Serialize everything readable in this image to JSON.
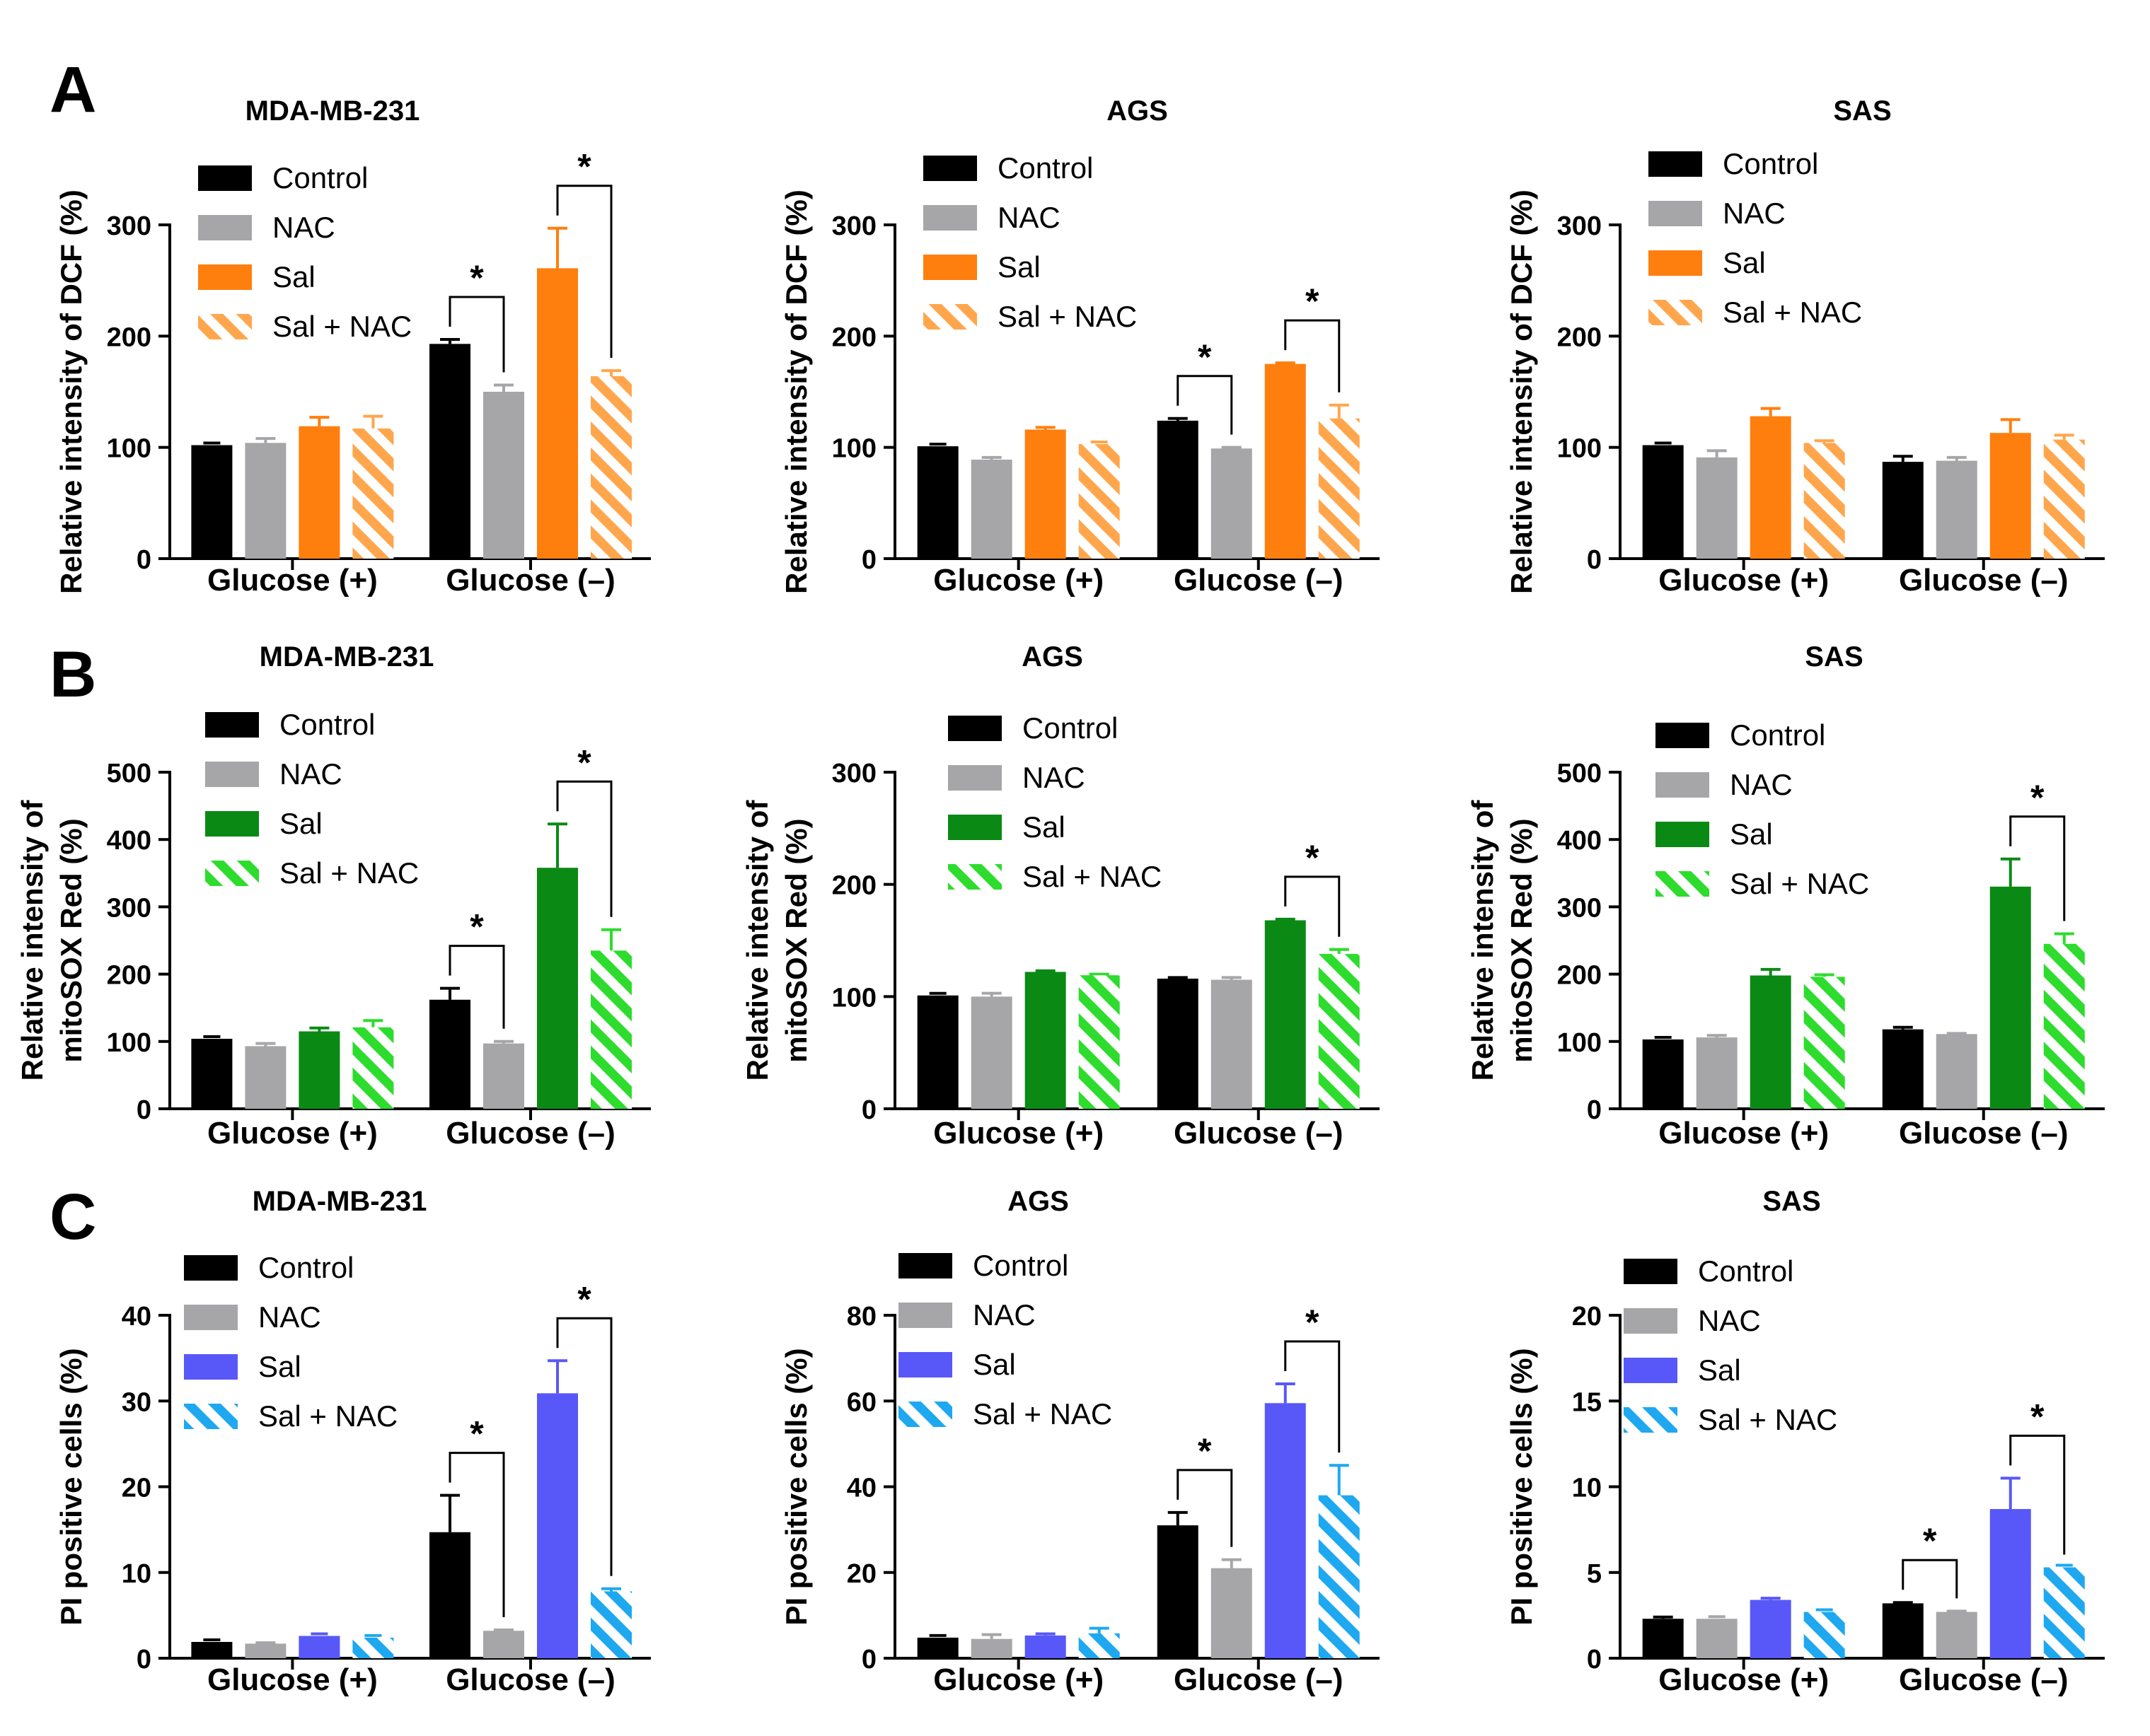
{
  "figure": {
    "colors": {
      "axis": "#000000",
      "control": "#000000",
      "nac": "#a6a6a8",
      "orange": "#ff7f0e",
      "orange_light": "#ffa64d",
      "green": "#0a8a14",
      "green_light": "#2ddc2d",
      "blue": "#5858f8",
      "blue_light": "#1ea8f0"
    },
    "rows": [
      {
        "letter": "A",
        "sal_color": "orange",
        "hatch_color": "orange_light"
      },
      {
        "letter": "B",
        "sal_color": "green",
        "hatch_color": "green_light"
      },
      {
        "letter": "C",
        "sal_color": "blue",
        "hatch_color": "blue_light"
      }
    ]
  },
  "chart_data": [
    {
      "panel": "A",
      "type": "bar",
      "title": "MDA-MB-231",
      "ylabel": [
        "Relative intensity of  DCF (%)"
      ],
      "ylim": [
        0,
        300
      ],
      "yticks": [
        0,
        100,
        200,
        300
      ],
      "categories": [
        "Glucose (+)",
        "Glucose (–)"
      ],
      "series": [
        {
          "name": "Control",
          "values": [
            102,
            193
          ],
          "errors": [
            0,
            4
          ]
        },
        {
          "name": "NAC",
          "values": [
            104,
            150
          ],
          "errors": [
            4,
            6
          ]
        },
        {
          "name": "Sal",
          "values": [
            119,
            261
          ],
          "errors": [
            8,
            36
          ]
        },
        {
          "name": "Sal + NAC",
          "values": [
            117,
            164
          ],
          "errors": [
            11,
            5
          ]
        }
      ],
      "annotations": [
        {
          "text": "*",
          "group": 1,
          "from": 0,
          "to": 1
        },
        {
          "text": "*",
          "group": 1,
          "from": 2,
          "to": 3
        }
      ]
    },
    {
      "panel": "A",
      "type": "bar",
      "title": "AGS",
      "ylabel": [
        "Relative intensity of  DCF (%)"
      ],
      "ylim": [
        0,
        300
      ],
      "yticks": [
        0,
        100,
        200,
        300
      ],
      "categories": [
        "Glucose (+)",
        "Glucose (–)"
      ],
      "series": [
        {
          "name": "Control",
          "values": [
            101,
            124
          ],
          "errors": [
            0,
            2
          ]
        },
        {
          "name": "NAC",
          "values": [
            89,
            99
          ],
          "errors": [
            2,
            1
          ]
        },
        {
          "name": "Sal",
          "values": [
            116,
            175
          ],
          "errors": [
            2,
            1
          ]
        },
        {
          "name": "Sal + NAC",
          "values": [
            103,
            126
          ],
          "errors": [
            0,
            12
          ]
        }
      ],
      "annotations": [
        {
          "text": "*",
          "group": 1,
          "from": 0,
          "to": 1
        },
        {
          "text": "*",
          "group": 1,
          "from": 2,
          "to": 3
        }
      ]
    },
    {
      "panel": "A",
      "type": "bar",
      "title": "SAS",
      "ylabel": [
        "Relative intensity of  DCF (%)"
      ],
      "ylim": [
        0,
        300
      ],
      "yticks": [
        0,
        100,
        200,
        300
      ],
      "categories": [
        "Glucose (+)",
        "Glucose (–)"
      ],
      "series": [
        {
          "name": "Control",
          "values": [
            102,
            87
          ],
          "errors": [
            0,
            5
          ]
        },
        {
          "name": "NAC",
          "values": [
            91,
            88
          ],
          "errors": [
            6,
            3
          ]
        },
        {
          "name": "Sal",
          "values": [
            128,
            113
          ],
          "errors": [
            7,
            12
          ]
        },
        {
          "name": "Sal + NAC",
          "values": [
            104,
            107
          ],
          "errors": [
            2,
            4
          ]
        }
      ],
      "annotations": []
    },
    {
      "panel": "B",
      "type": "bar",
      "title": "MDA-MB-231",
      "ylabel": [
        "Relative intensity of",
        "mitoSOX Red (%)"
      ],
      "ylim": [
        0,
        500
      ],
      "yticks": [
        0,
        100,
        200,
        300,
        400,
        500
      ],
      "categories": [
        "Glucose (+)",
        "Glucose (–)"
      ],
      "series": [
        {
          "name": "Control",
          "values": [
            104,
            162
          ],
          "errors": [
            0,
            17
          ]
        },
        {
          "name": "NAC",
          "values": [
            93,
            97
          ],
          "errors": [
            4,
            3
          ]
        },
        {
          "name": "Sal",
          "values": [
            115,
            358
          ],
          "errors": [
            5,
            65
          ]
        },
        {
          "name": "Sal + NAC",
          "values": [
            121,
            235
          ],
          "errors": [
            10,
            31
          ]
        }
      ],
      "annotations": [
        {
          "text": "*",
          "group": 1,
          "from": 0,
          "to": 1
        },
        {
          "text": "*",
          "group": 1,
          "from": 2,
          "to": 3
        }
      ]
    },
    {
      "panel": "B",
      "type": "bar",
      "title": "AGS",
      "ylabel": [
        "Relative intensity of",
        "mitoSOX Red (%)"
      ],
      "ylim": [
        0,
        300
      ],
      "yticks": [
        0,
        100,
        200,
        300
      ],
      "categories": [
        "Glucose (+)",
        "Glucose (–)"
      ],
      "series": [
        {
          "name": "Control",
          "values": [
            101,
            116
          ],
          "errors": [
            0,
            1
          ]
        },
        {
          "name": "NAC",
          "values": [
            100,
            115
          ],
          "errors": [
            3,
            2
          ]
        },
        {
          "name": "Sal",
          "values": [
            122,
            168
          ],
          "errors": [
            1,
            1
          ]
        },
        {
          "name": "Sal + NAC",
          "values": [
            119,
            138
          ],
          "errors": [
            1,
            4
          ]
        }
      ],
      "annotations": [
        {
          "text": "*",
          "group": 1,
          "from": 2,
          "to": 3
        }
      ]
    },
    {
      "panel": "B",
      "type": "bar",
      "title": "SAS",
      "ylabel": [
        "Relative intensity of",
        "mitoSOX Red (%)"
      ],
      "ylim": [
        0,
        500
      ],
      "yticks": [
        0,
        100,
        200,
        300,
        400,
        500
      ],
      "categories": [
        "Glucose (+)",
        "Glucose (–)"
      ],
      "series": [
        {
          "name": "Control",
          "values": [
            103,
            118
          ],
          "errors": [
            0,
            3
          ]
        },
        {
          "name": "NAC",
          "values": [
            106,
            111
          ],
          "errors": [
            3,
            1
          ]
        },
        {
          "name": "Sal",
          "values": [
            198,
            330
          ],
          "errors": [
            9,
            41
          ]
        },
        {
          "name": "Sal + NAC",
          "values": [
            196,
            245
          ],
          "errors": [
            3,
            15
          ]
        }
      ],
      "annotations": [
        {
          "text": "*",
          "group": 1,
          "from": 2,
          "to": 3
        }
      ]
    },
    {
      "panel": "C",
      "type": "bar",
      "title": "MDA-MB-231",
      "ylabel": [
        "PI positive cells (%)"
      ],
      "ylim": [
        0,
        40
      ],
      "yticks": [
        0,
        10,
        20,
        30,
        40
      ],
      "categories": [
        "Glucose (+)",
        "Glucose (–)"
      ],
      "series": [
        {
          "name": "Control",
          "values": [
            1.9,
            14.7
          ],
          "errors": [
            0,
            4.3
          ]
        },
        {
          "name": "NAC",
          "values": [
            1.7,
            3.2
          ],
          "errors": [
            0.1,
            0.1
          ]
        },
        {
          "name": "Sal",
          "values": [
            2.6,
            30.9
          ],
          "errors": [
            0,
            3.8
          ]
        },
        {
          "name": "Sal + NAC",
          "values": [
            2.4,
            7.8
          ],
          "errors": [
            0,
            0.3
          ]
        }
      ],
      "annotations": [
        {
          "text": "*",
          "group": 1,
          "from": 0,
          "to": 1
        },
        {
          "text": "*",
          "group": 1,
          "from": 2,
          "to": 3
        }
      ]
    },
    {
      "panel": "C",
      "type": "bar",
      "title": "AGS",
      "ylabel": [
        "PI positive cells (%)"
      ],
      "ylim": [
        0,
        80
      ],
      "yticks": [
        0,
        20,
        40,
        60,
        80
      ],
      "categories": [
        "Glucose (+)",
        "Glucose (–)"
      ],
      "series": [
        {
          "name": "Control",
          "values": [
            4.8,
            31
          ],
          "errors": [
            0,
            3
          ]
        },
        {
          "name": "NAC",
          "values": [
            4.5,
            21
          ],
          "errors": [
            1,
            2
          ]
        },
        {
          "name": "Sal",
          "values": [
            5.3,
            59.5
          ],
          "errors": [
            0.4,
            4.5
          ]
        },
        {
          "name": "Sal + NAC",
          "values": [
            5.8,
            38
          ],
          "errors": [
            1.2,
            7
          ]
        }
      ],
      "annotations": [
        {
          "text": "*",
          "group": 1,
          "from": 0,
          "to": 1
        },
        {
          "text": "*",
          "group": 1,
          "from": 2,
          "to": 3
        }
      ]
    },
    {
      "panel": "C",
      "type": "bar",
      "title": "SAS",
      "ylabel": [
        "PI positive cells (%)"
      ],
      "ylim": [
        0,
        20
      ],
      "yticks": [
        0,
        5,
        10,
        15,
        20
      ],
      "categories": [
        "Glucose (+)",
        "Glucose (–)"
      ],
      "series": [
        {
          "name": "Control",
          "values": [
            2.3,
            3.2
          ],
          "errors": [
            0.1,
            0.05
          ]
        },
        {
          "name": "NAC",
          "values": [
            2.3,
            2.7
          ],
          "errors": [
            0,
            0.05
          ]
        },
        {
          "name": "Sal",
          "values": [
            3.4,
            8.7
          ],
          "errors": [
            0.1,
            1.8
          ]
        },
        {
          "name": "Sal + NAC",
          "values": [
            2.7,
            5.3
          ],
          "errors": [
            0,
            0
          ]
        }
      ],
      "annotations": [
        {
          "text": "*",
          "group": 1,
          "from": 0,
          "to": 1
        },
        {
          "text": "*",
          "group": 1,
          "from": 2,
          "to": 3
        }
      ]
    }
  ]
}
